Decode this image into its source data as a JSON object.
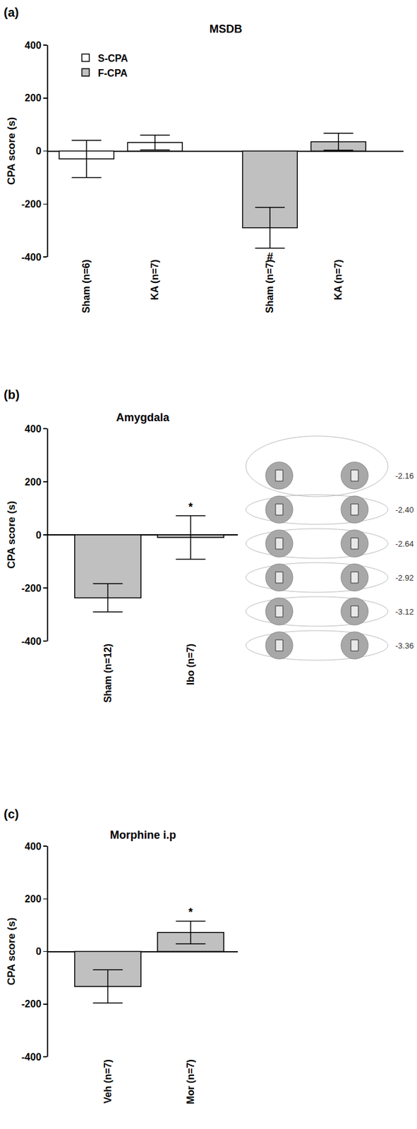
{
  "chart_data": [
    {
      "type": "bar",
      "label": "(a)",
      "title": "MSDB",
      "y_label": "CPA score (s)",
      "ylim": [
        -400,
        400
      ],
      "yticks": [
        -400,
        -200,
        0,
        200,
        400
      ],
      "grid": false,
      "legend": "upper left",
      "series": [
        {
          "name": "S-CPA",
          "color": "#ffffff",
          "categories": [
            "Sham (n=6)",
            "KA (n=7)"
          ],
          "values": [
            -30,
            32
          ],
          "errors": [
            70,
            28
          ]
        },
        {
          "name": "F-CPA",
          "color": "#c0c0c0",
          "categories": [
            "Sham (n=7)",
            "KA (n=7)"
          ],
          "values": [
            -290,
            35
          ],
          "errors": [
            77,
            32
          ]
        }
      ],
      "annotations": [
        {
          "text": "#",
          "series": "F-CPA",
          "category": "Sham (n=7)"
        }
      ]
    },
    {
      "type": "bar",
      "label": "(b)",
      "title": "Amygdala",
      "y_label": "CPA score (s)",
      "ylim": [
        -400,
        400
      ],
      "yticks": [
        -400,
        -200,
        0,
        200,
        400
      ],
      "grid": false,
      "categories": [
        "Sham (n=12)",
        "Ibo (n=7)"
      ],
      "values": [
        -237,
        -10
      ],
      "errors": [
        53,
        82
      ],
      "color": "#c0c0c0",
      "annotations": [
        {
          "text": "*",
          "category": "Ibo (n=7)"
        }
      ],
      "section_labels": [
        "-2.16",
        "-2.40",
        "-2.64",
        "-2.92",
        "-3.12",
        "-3.36"
      ]
    },
    {
      "type": "bar",
      "label": "(c)",
      "title": "Morphine i.p",
      "y_label": "CPA score (s)",
      "ylim": [
        -400,
        400
      ],
      "yticks": [
        -400,
        -200,
        0,
        200,
        400
      ],
      "grid": false,
      "categories": [
        "Veh (n=7)",
        "Mor (n=7)"
      ],
      "values": [
        -133,
        72
      ],
      "errors": [
        63,
        43
      ],
      "color": "#c0c0c0",
      "annotations": [
        {
          "text": "*",
          "category": "Mor (n=7)"
        }
      ]
    }
  ]
}
